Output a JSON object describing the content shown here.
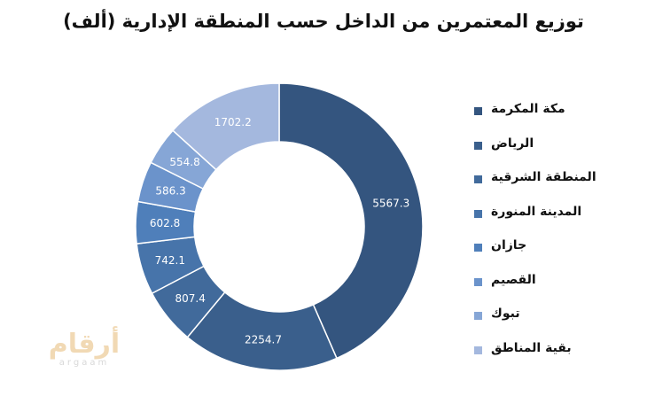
{
  "chart_data": {
    "type": "donut",
    "title": "توزيع المعتمرين من الداخل حسب المنطقة الإدارية (ألف)",
    "categories": [
      "مكة المكرمة",
      "الرياض",
      "المنطقة الشرقية",
      "المدينة المنورة",
      "جازان",
      "القصيم",
      "تبوك",
      "بقية المناطق"
    ],
    "values": [
      5567.3,
      2254.7,
      807.4,
      742.1,
      602.8,
      586.3,
      554.8,
      1702.2
    ],
    "data_labels": [
      "5567.3",
      "2254.7",
      "807.4",
      "742.1",
      "602.8",
      "586.3",
      "554.8",
      "1702.2"
    ],
    "colors": [
      "#34557f",
      "#3a5f8c",
      "#416a9b",
      "#4774aa",
      "#4f7fba",
      "#6b93cb",
      "#86a6d6",
      "#a4b8de"
    ],
    "legend_position": "right",
    "grid": false
  },
  "watermark": {
    "text_ar": "أرقام",
    "text_en": "argaam"
  }
}
